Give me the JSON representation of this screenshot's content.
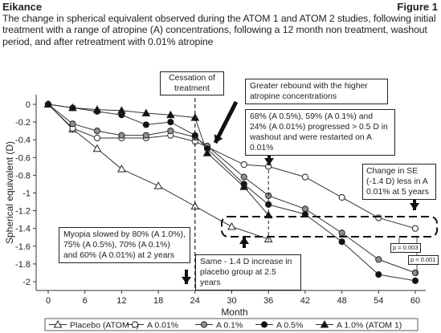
{
  "header": {
    "brand": "Eikance",
    "figure": "Figure 1"
  },
  "description": "The change in spherical equivalent observed during the ATOM 1 and ATOM 2 studies, following initial treatment with a range of atropine (A) concentrations, following a 12 month non treatment, washout period, and after retreatment with 0.01% atropine",
  "annotations": {
    "cessation": "Cessation of treatment",
    "rebound": "Greater rebound with the higher atropine concentrations",
    "progressed": "68% (A 0.5%), 59% (A 0.1%) and 24% (A 0.01%) progressed > 0.5 D in washout and were restarted on A 0.01%",
    "change_se": "Change in SE (-1.4 D) less in A 0.01% at 5 years",
    "myopia": "Myopia slowed by 80% (A 1.0%), 75% (A 0.5%), 70% (A 0.1%) and 60% (A 0.01%) at 2 years",
    "same": "Same - 1.4 D increase in placebo group at 2.5 years",
    "p1": "p = 0.003",
    "p2": "p < 0.001"
  },
  "colors": {
    "placebo": "#ffffff",
    "a001": "#ffffff",
    "a01": "#909090",
    "a05": "#111111",
    "a10": "#111111",
    "line": "#333333"
  },
  "chart_data": {
    "type": "line",
    "title": "",
    "xlabel": "Month",
    "ylabel": "Spherical equivalent (D)",
    "xlim": [
      0,
      60
    ],
    "ylim": [
      -2,
      0
    ],
    "xticks": [
      0,
      6,
      12,
      18,
      24,
      30,
      36,
      42,
      48,
      54,
      60
    ],
    "yticks": [
      0,
      -0.2,
      -0.4,
      -0.6,
      -0.8,
      -1,
      -1.2,
      -1.4,
      -1.6,
      -1.8,
      -2
    ],
    "ytick_labels": [
      "0",
      "-0.2",
      "-0.4",
      "-0.6",
      "-0.8",
      "-1",
      "-1.2",
      "-1.4",
      "-1.6",
      "-1.8",
      "-2"
    ],
    "cessation_month": 24,
    "series": [
      {
        "name": "Placebo (ATOM 1)",
        "marker": "triangle-open",
        "x": [
          0,
          4,
          8,
          12,
          18,
          24,
          30,
          36
        ],
        "y": [
          0,
          -0.28,
          -0.5,
          -0.73,
          -0.92,
          -1.15,
          -1.38,
          -1.52
        ]
      },
      {
        "name": "A 0.01%",
        "marker": "circle-open",
        "x": [
          0,
          4,
          8,
          12,
          16,
          20,
          24,
          26,
          32,
          36,
          42,
          48,
          54,
          60
        ],
        "y": [
          0,
          -0.27,
          -0.38,
          -0.38,
          -0.38,
          -0.35,
          -0.42,
          -0.48,
          -0.68,
          -0.7,
          -0.82,
          -1.05,
          -1.28,
          -1.4
        ]
      },
      {
        "name": "A 0.1%",
        "marker": "circle-gray",
        "x": [
          0,
          4,
          8,
          12,
          16,
          20,
          24,
          26,
          32,
          36,
          42,
          48,
          54,
          60
        ],
        "y": [
          0,
          -0.22,
          -0.3,
          -0.35,
          -0.35,
          -0.3,
          -0.37,
          -0.47,
          -0.82,
          -1.03,
          -1.18,
          -1.45,
          -1.75,
          -1.9
        ]
      },
      {
        "name": "A 0.5%",
        "marker": "circle-filled",
        "x": [
          0,
          4,
          8,
          12,
          16,
          20,
          24,
          26,
          32,
          36,
          42,
          48,
          54,
          60
        ],
        "y": [
          0,
          -0.04,
          -0.08,
          -0.12,
          -0.23,
          -0.2,
          -0.35,
          -0.5,
          -0.9,
          -1.13,
          -1.24,
          -1.55,
          -1.92,
          -1.99
        ]
      },
      {
        "name": "A 1.0% (ATOM 1)",
        "marker": "triangle-filled",
        "x": [
          0,
          4,
          8,
          12,
          16,
          20,
          24,
          26,
          32,
          36
        ],
        "y": [
          0,
          -0.04,
          -0.06,
          -0.07,
          -0.1,
          -0.12,
          -0.15,
          -0.55,
          -0.93,
          -1.25
        ]
      }
    ]
  }
}
